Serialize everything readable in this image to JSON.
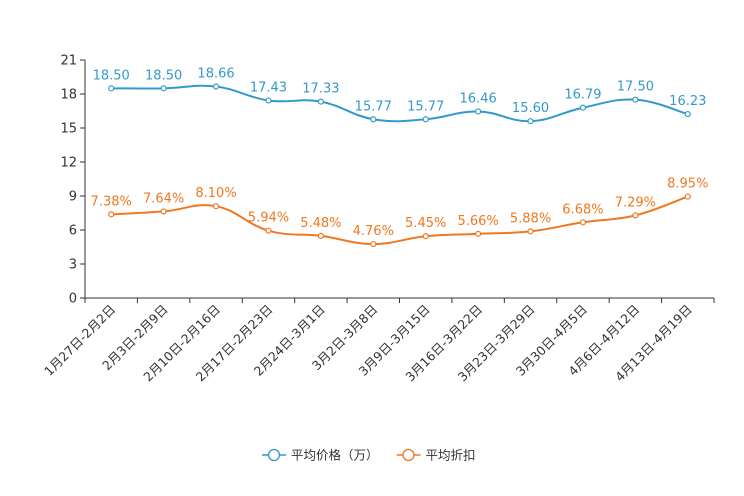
{
  "chart_data": {
    "type": "line",
    "title": "",
    "xlabel": "",
    "ylabel": "",
    "ylim": [
      0,
      21
    ],
    "yticks": [
      0,
      3,
      6,
      9,
      12,
      15,
      18,
      21
    ],
    "categories": [
      "1月27日-2月2日",
      "2月3日-2月9日",
      "2月10日-2月16日",
      "2月17日-2月23日",
      "2月24日-3月1日",
      "3月2日-3月8日",
      "3月9日-3月15日",
      "3月16日-3月22日",
      "3月23日-3月29日",
      "3月30日-4月5日",
      "4月6日-4月12日",
      "4月13日-4月19日"
    ],
    "series": [
      {
        "name": "平均价格（万）",
        "color": "#3399cc",
        "values": [
          18.5,
          18.5,
          18.66,
          17.43,
          17.33,
          15.77,
          15.77,
          16.46,
          15.6,
          16.79,
          17.5,
          16.23
        ],
        "labels": [
          "18.50",
          "18.50",
          "18.66",
          "17.43",
          "17.33",
          "15.77",
          "15.77",
          "16.46",
          "15.60",
          "16.79",
          "17.50",
          "16.23"
        ]
      },
      {
        "name": "平均折扣",
        "color": "#f07820",
        "values": [
          7.38,
          7.64,
          8.1,
          5.94,
          5.48,
          4.76,
          5.45,
          5.66,
          5.88,
          6.68,
          7.29,
          8.95
        ],
        "labels": [
          "7.38%",
          "7.64%",
          "8.10%",
          "5.94%",
          "5.48%",
          "4.76%",
          "5.45%",
          "5.66%",
          "5.88%",
          "6.68%",
          "7.29%",
          "8.95%"
        ]
      }
    ],
    "legend_position": "bottom-center"
  }
}
